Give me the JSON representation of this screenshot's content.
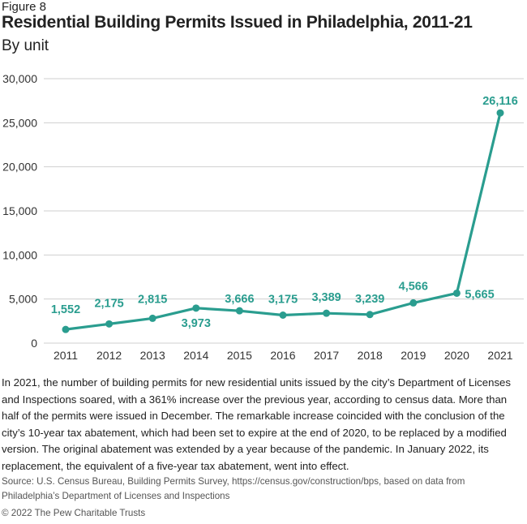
{
  "figure_label": "Figure 8",
  "description": "In 2021, the number of building permits for new residential units issued by the city’s Department of Licenses and Inspections soared, with a 361% increase over the previous year, according to census data. More than half of the permits were issued in December. The remarkable increase coincided with the conclusion of the city’s 10-year tax abatement, which had been set to expire at the end of 2020, to be replaced by a modified version. The original abatement was extended by a year because of the pandemic. In January 2022, its replacement, the equivalent of a five-year tax abatement, went into effect.",
  "source": "Source: U.S. Census Bureau, Building Permits Survey, https://census.gov/construction/bps, based on data from Philadelphia’s Department of Licenses and Inspections",
  "copyright": "© 2022 The Pew Charitable Trusts",
  "chart_data": {
    "type": "line",
    "title": "Residential Building Permits Issued in Philadelphia, 2011-21",
    "subtitle": "By unit",
    "categories": [
      "2011",
      "2012",
      "2013",
      "2014",
      "2015",
      "2016",
      "2017",
      "2018",
      "2019",
      "2020",
      "2021"
    ],
    "values": [
      1552,
      2175,
      2815,
      3973,
      3666,
      3175,
      3389,
      3239,
      4566,
      5665,
      26116
    ],
    "data_labels": [
      "1,552",
      "2,175",
      "2,815",
      "3,973",
      "3,666",
      "3,175",
      "3,389",
      "3,239",
      "4,566",
      "5,665",
      "26,116"
    ],
    "yticks": [
      0,
      5000,
      10000,
      15000,
      20000,
      25000,
      30000
    ],
    "ytick_labels": [
      "0",
      "5,000",
      "10,000",
      "15,000",
      "20,000",
      "25,000",
      "30,000"
    ],
    "ylim": [
      0,
      30000
    ],
    "grid": true,
    "color": "#2a9d8f"
  }
}
